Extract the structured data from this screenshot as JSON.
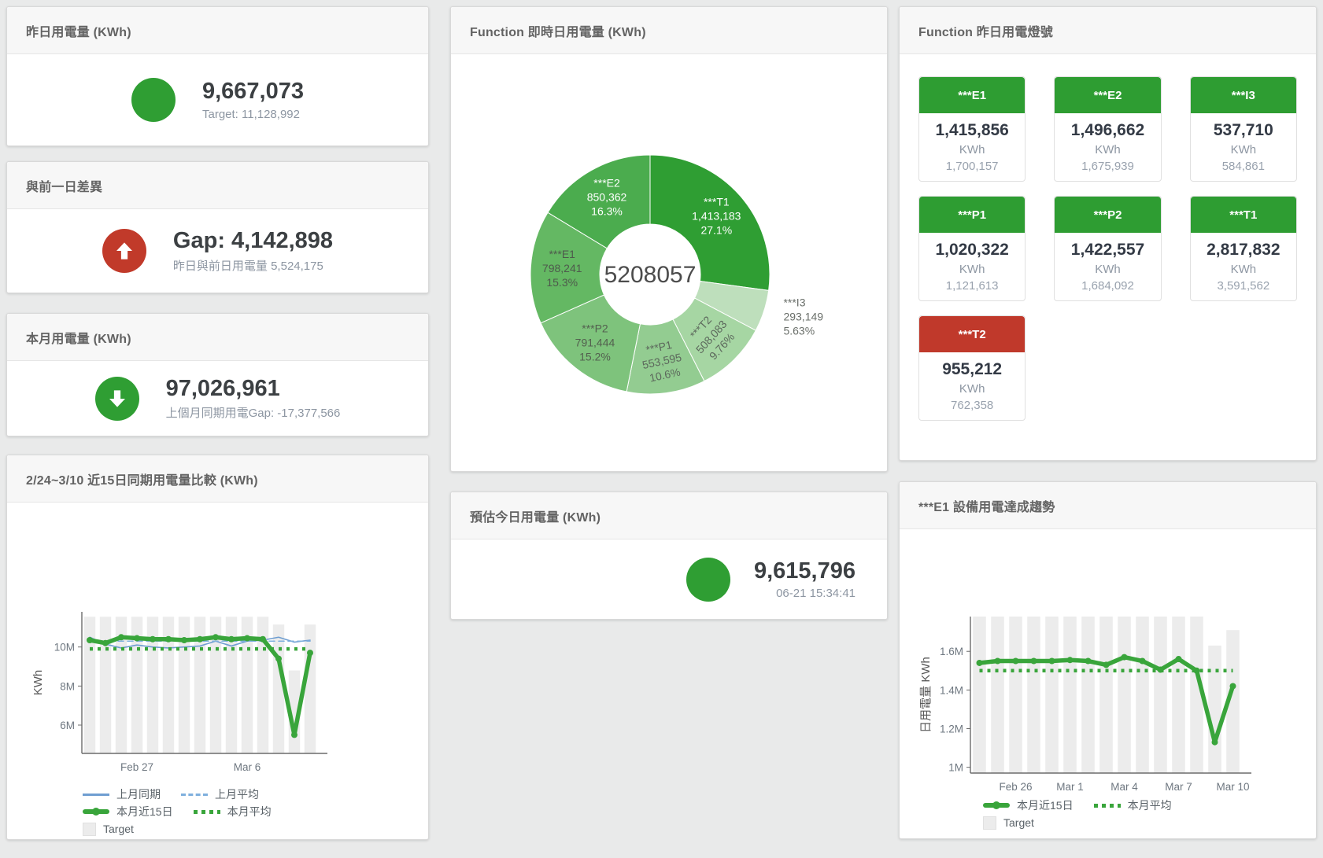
{
  "cards": {
    "yesterday": {
      "title": "昨日用電量 (KWh)",
      "value": "9,667,073",
      "subtext": "Target: 11,128,992",
      "circle_color": "#2f9e33"
    },
    "day_gap": {
      "title": "與前一日差異",
      "value": "Gap: 4,142,898",
      "subtext": "昨日與前日用電量 5,524,175",
      "circle_color": "#c13a2a",
      "arrow": "up"
    },
    "month": {
      "title": "本月用電量 (KWh)",
      "value": "97,026,961",
      "subtext": "上個月同期用電Gap: -17,377,566",
      "circle_color": "#2f9e33",
      "arrow": "down"
    },
    "estimate": {
      "title": "預估今日用電量 (KWh)",
      "value": "9,615,796",
      "subtext": "06-21 15:34:41",
      "circle_color": "#2f9e33"
    },
    "realtime": {
      "title": "Function 即時日用電量 (KWh)"
    },
    "lights": {
      "title": "Function 昨日用電燈號"
    },
    "compare": {
      "title": "2/24~3/10 近15日同期用電量比較 (KWh)"
    },
    "trend": {
      "title": "***E1 設備用電達成趨勢"
    }
  },
  "lights_tiles": [
    {
      "name": "***E1",
      "value": "1,415,856",
      "unit": "KWh",
      "target": "1,700,157",
      "header_color": "#2e9d32"
    },
    {
      "name": "***E2",
      "value": "1,496,662",
      "unit": "KWh",
      "target": "1,675,939",
      "header_color": "#2e9d32"
    },
    {
      "name": "***I3",
      "value": "537,710",
      "unit": "KWh",
      "target": "584,861",
      "header_color": "#2e9d32"
    },
    {
      "name": "***P1",
      "value": "1,020,322",
      "unit": "KWh",
      "target": "1,121,613",
      "header_color": "#2e9d32"
    },
    {
      "name": "***P2",
      "value": "1,422,557",
      "unit": "KWh",
      "target": "1,684,092",
      "header_color": "#2e9d32"
    },
    {
      "name": "***T1",
      "value": "2,817,832",
      "unit": "KWh",
      "target": "3,591,562",
      "header_color": "#2e9d32"
    },
    {
      "name": "***T2",
      "value": "955,212",
      "unit": "KWh",
      "target": "762,358",
      "header_color": "#c0392b"
    }
  ],
  "chart_data": [
    {
      "type": "pie",
      "title": "Function 即時日用電量 (KWh)",
      "center_label": "5208057",
      "slices": [
        {
          "name": "***T1",
          "value": 1413183,
          "value_label": "1,413,183",
          "percent_label": "27.1%",
          "color": "#2f9e33",
          "label": "inside",
          "label_color": "#ffffff"
        },
        {
          "name": "***I3",
          "value": 293149,
          "value_label": "293,149",
          "percent_label": "5.63%",
          "color": "#bedfbc",
          "label": "outside",
          "label_color": "#6a6f6a"
        },
        {
          "name": "***T2",
          "value": 508083,
          "value_label": "508,083",
          "percent_label": "9.76%",
          "color": "#a6d6a3",
          "label": "inside",
          "label_color": "#5c685c",
          "label_rotate": -48
        },
        {
          "name": "***P1",
          "value": 553595,
          "value_label": "553,595",
          "percent_label": "10.6%",
          "color": "#93cc91",
          "label": "inside",
          "label_color": "#5c685c",
          "label_rotate": -12
        },
        {
          "name": "***P2",
          "value": 791444,
          "value_label": "791,444",
          "percent_label": "15.2%",
          "color": "#7ec37c",
          "label": "inside",
          "label_color": "#53604f"
        },
        {
          "name": "***E1",
          "value": 798241,
          "value_label": "798,241",
          "percent_label": "15.3%",
          "color": "#64b863",
          "label": "inside",
          "label_color": "#4e5a4c"
        },
        {
          "name": "***E2",
          "value": 850362,
          "value_label": "850,362",
          "percent_label": "16.3%",
          "color": "#4bac4e",
          "label": "inside",
          "label_color": "#ffffff"
        }
      ]
    },
    {
      "type": "combo",
      "title": "2/24~3/10 近15日同期用電量比較 (KWh)",
      "ylabel": "KWh",
      "ylim": [
        4550000,
        11800000
      ],
      "yticks": [
        {
          "value": 6000000,
          "label": "6M"
        },
        {
          "value": 8000000,
          "label": "8M"
        },
        {
          "value": 10000000,
          "label": "10M"
        }
      ],
      "x_count": 15,
      "xticks": [
        {
          "index": 3,
          "label": "Feb 27"
        },
        {
          "index": 10,
          "label": "Mar 6"
        }
      ],
      "bars": {
        "name": "Target",
        "color": "#ececec",
        "values": [
          11550000,
          11550000,
          11550000,
          11550000,
          11550000,
          11550000,
          11550000,
          11550000,
          11550000,
          11550000,
          11550000,
          11550000,
          11150000,
          8800000,
          11150000
        ]
      },
      "lines": [
        {
          "name": "上月同期",
          "style": "solid",
          "width": 1.6,
          "color": "#6f9ed1",
          "values": [
            10500000,
            10150000,
            9950000,
            10100000,
            10000000,
            9950000,
            10000000,
            10050000,
            10300000,
            10050000,
            10300000,
            10350000,
            10500000,
            10250000,
            10350000
          ]
        },
        {
          "name": "上月平均",
          "style": "dashed",
          "width": 1.6,
          "color": "#7fb0de",
          "constant": 10300000
        },
        {
          "name": "本月近15日",
          "style": "solid",
          "width": 5.5,
          "color": "#39a53b",
          "values": [
            10350000,
            10200000,
            10500000,
            10450000,
            10400000,
            10400000,
            10350000,
            10400000,
            10500000,
            10400000,
            10450000,
            10400000,
            9400000,
            5500000,
            9700000
          ]
        },
        {
          "name": "本月平均",
          "style": "dotted",
          "width": 4.5,
          "color": "#39a53b",
          "constant": 9900000
        }
      ],
      "legend": [
        [
          {
            "label": "上月同期",
            "swatch": "line",
            "color": "#6f9ed1"
          },
          {
            "label": "上月平均",
            "swatch": "dash",
            "color": "#7fb0de"
          }
        ],
        [
          {
            "label": "本月近15日",
            "swatch": "thick",
            "color": "#39a53b"
          },
          {
            "label": "本月平均",
            "swatch": "dots",
            "color": "#39a53b"
          }
        ],
        [
          {
            "label": "Target",
            "swatch": "square",
            "color": "#ececec"
          }
        ]
      ]
    },
    {
      "type": "combo",
      "title": "***E1 設備用電達成趨勢",
      "ylabel": "日用電量 KWh",
      "ylim": [
        970000,
        1780000
      ],
      "yticks": [
        {
          "value": 1000000,
          "label": "1M"
        },
        {
          "value": 1200000,
          "label": "1.2M"
        },
        {
          "value": 1400000,
          "label": "1.4M"
        },
        {
          "value": 1600000,
          "label": "1.6M"
        }
      ],
      "x_count": 15,
      "xticks": [
        {
          "index": 2,
          "label": "Feb 26"
        },
        {
          "index": 5,
          "label": "Mar 1"
        },
        {
          "index": 8,
          "label": "Mar 4"
        },
        {
          "index": 11,
          "label": "Mar 7"
        },
        {
          "index": 14,
          "label": "Mar 10"
        }
      ],
      "bars": {
        "name": "Target",
        "color": "#ececec",
        "values": [
          1780000,
          1780000,
          1780000,
          1780000,
          1780000,
          1780000,
          1780000,
          1780000,
          1780000,
          1780000,
          1780000,
          1780000,
          1780000,
          1630000,
          1710000
        ]
      },
      "lines": [
        {
          "name": "本月近15日",
          "style": "solid",
          "width": 5.5,
          "color": "#39a53b",
          "values": [
            1540000,
            1550000,
            1550000,
            1550000,
            1550000,
            1555000,
            1550000,
            1530000,
            1570000,
            1550000,
            1505000,
            1560000,
            1500000,
            1130000,
            1420000
          ]
        },
        {
          "name": "本月平均",
          "style": "dotted",
          "width": 4.5,
          "color": "#39a53b",
          "constant": 1500000
        }
      ],
      "legend": [
        [
          {
            "label": "本月近15日",
            "swatch": "thick",
            "color": "#39a53b"
          },
          {
            "label": "本月平均",
            "swatch": "dots",
            "color": "#39a53b"
          }
        ],
        [
          {
            "label": "Target",
            "swatch": "square",
            "color": "#ececec"
          }
        ]
      ]
    }
  ]
}
